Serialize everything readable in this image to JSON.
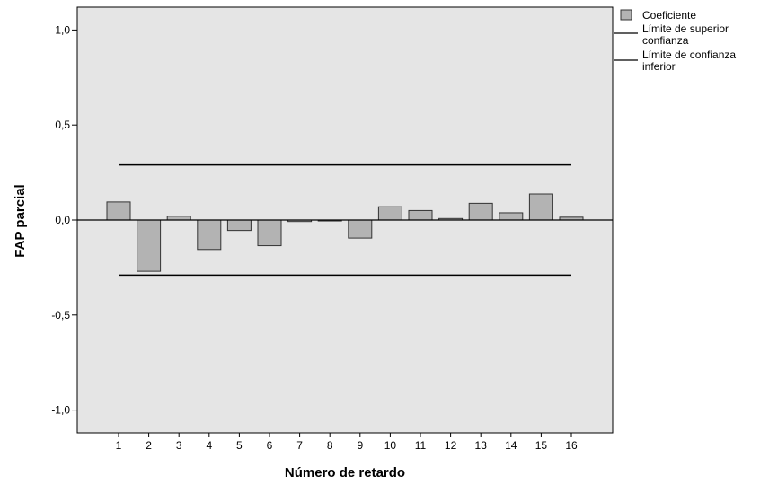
{
  "chart_data": {
    "type": "bar",
    "xlabel": "Número de retardo",
    "ylabel": "FAP parcial",
    "categories": [
      "1",
      "2",
      "3",
      "4",
      "5",
      "6",
      "7",
      "8",
      "9",
      "10",
      "11",
      "12",
      "13",
      "14",
      "15",
      "16"
    ],
    "series": [
      {
        "name": "Coeficiente",
        "values": [
          0.095,
          -0.27,
          0.02,
          -0.155,
          -0.055,
          -0.135,
          -0.008,
          -0.005,
          -0.095,
          0.07,
          0.05,
          0.008,
          0.088,
          0.038,
          0.137,
          0.015
        ]
      }
    ],
    "upper_limit": 0.29,
    "lower_limit": -0.29,
    "ylim": [
      -1.12,
      1.12
    ],
    "yticks": [
      1.0,
      0.5,
      0.0,
      -0.5,
      -1.0
    ],
    "ytick_labels": [
      "1,0",
      "0,5",
      "0,0",
      "-0,5",
      "-1,0"
    ],
    "grid": false,
    "legend_position": "top-right",
    "legend": [
      {
        "label": "Coeficiente",
        "kind": "bar"
      },
      {
        "label_lines": [
          "Límite de superior",
          "confianza"
        ],
        "kind": "line"
      },
      {
        "label_lines": [
          "Límite de confianza",
          "inferior"
        ],
        "kind": "line"
      }
    ],
    "colors": {
      "plot_background": "#e5e5e5",
      "bar_fill": "#b3b3b3",
      "bar_stroke": "#333333",
      "line": "#000000"
    }
  }
}
